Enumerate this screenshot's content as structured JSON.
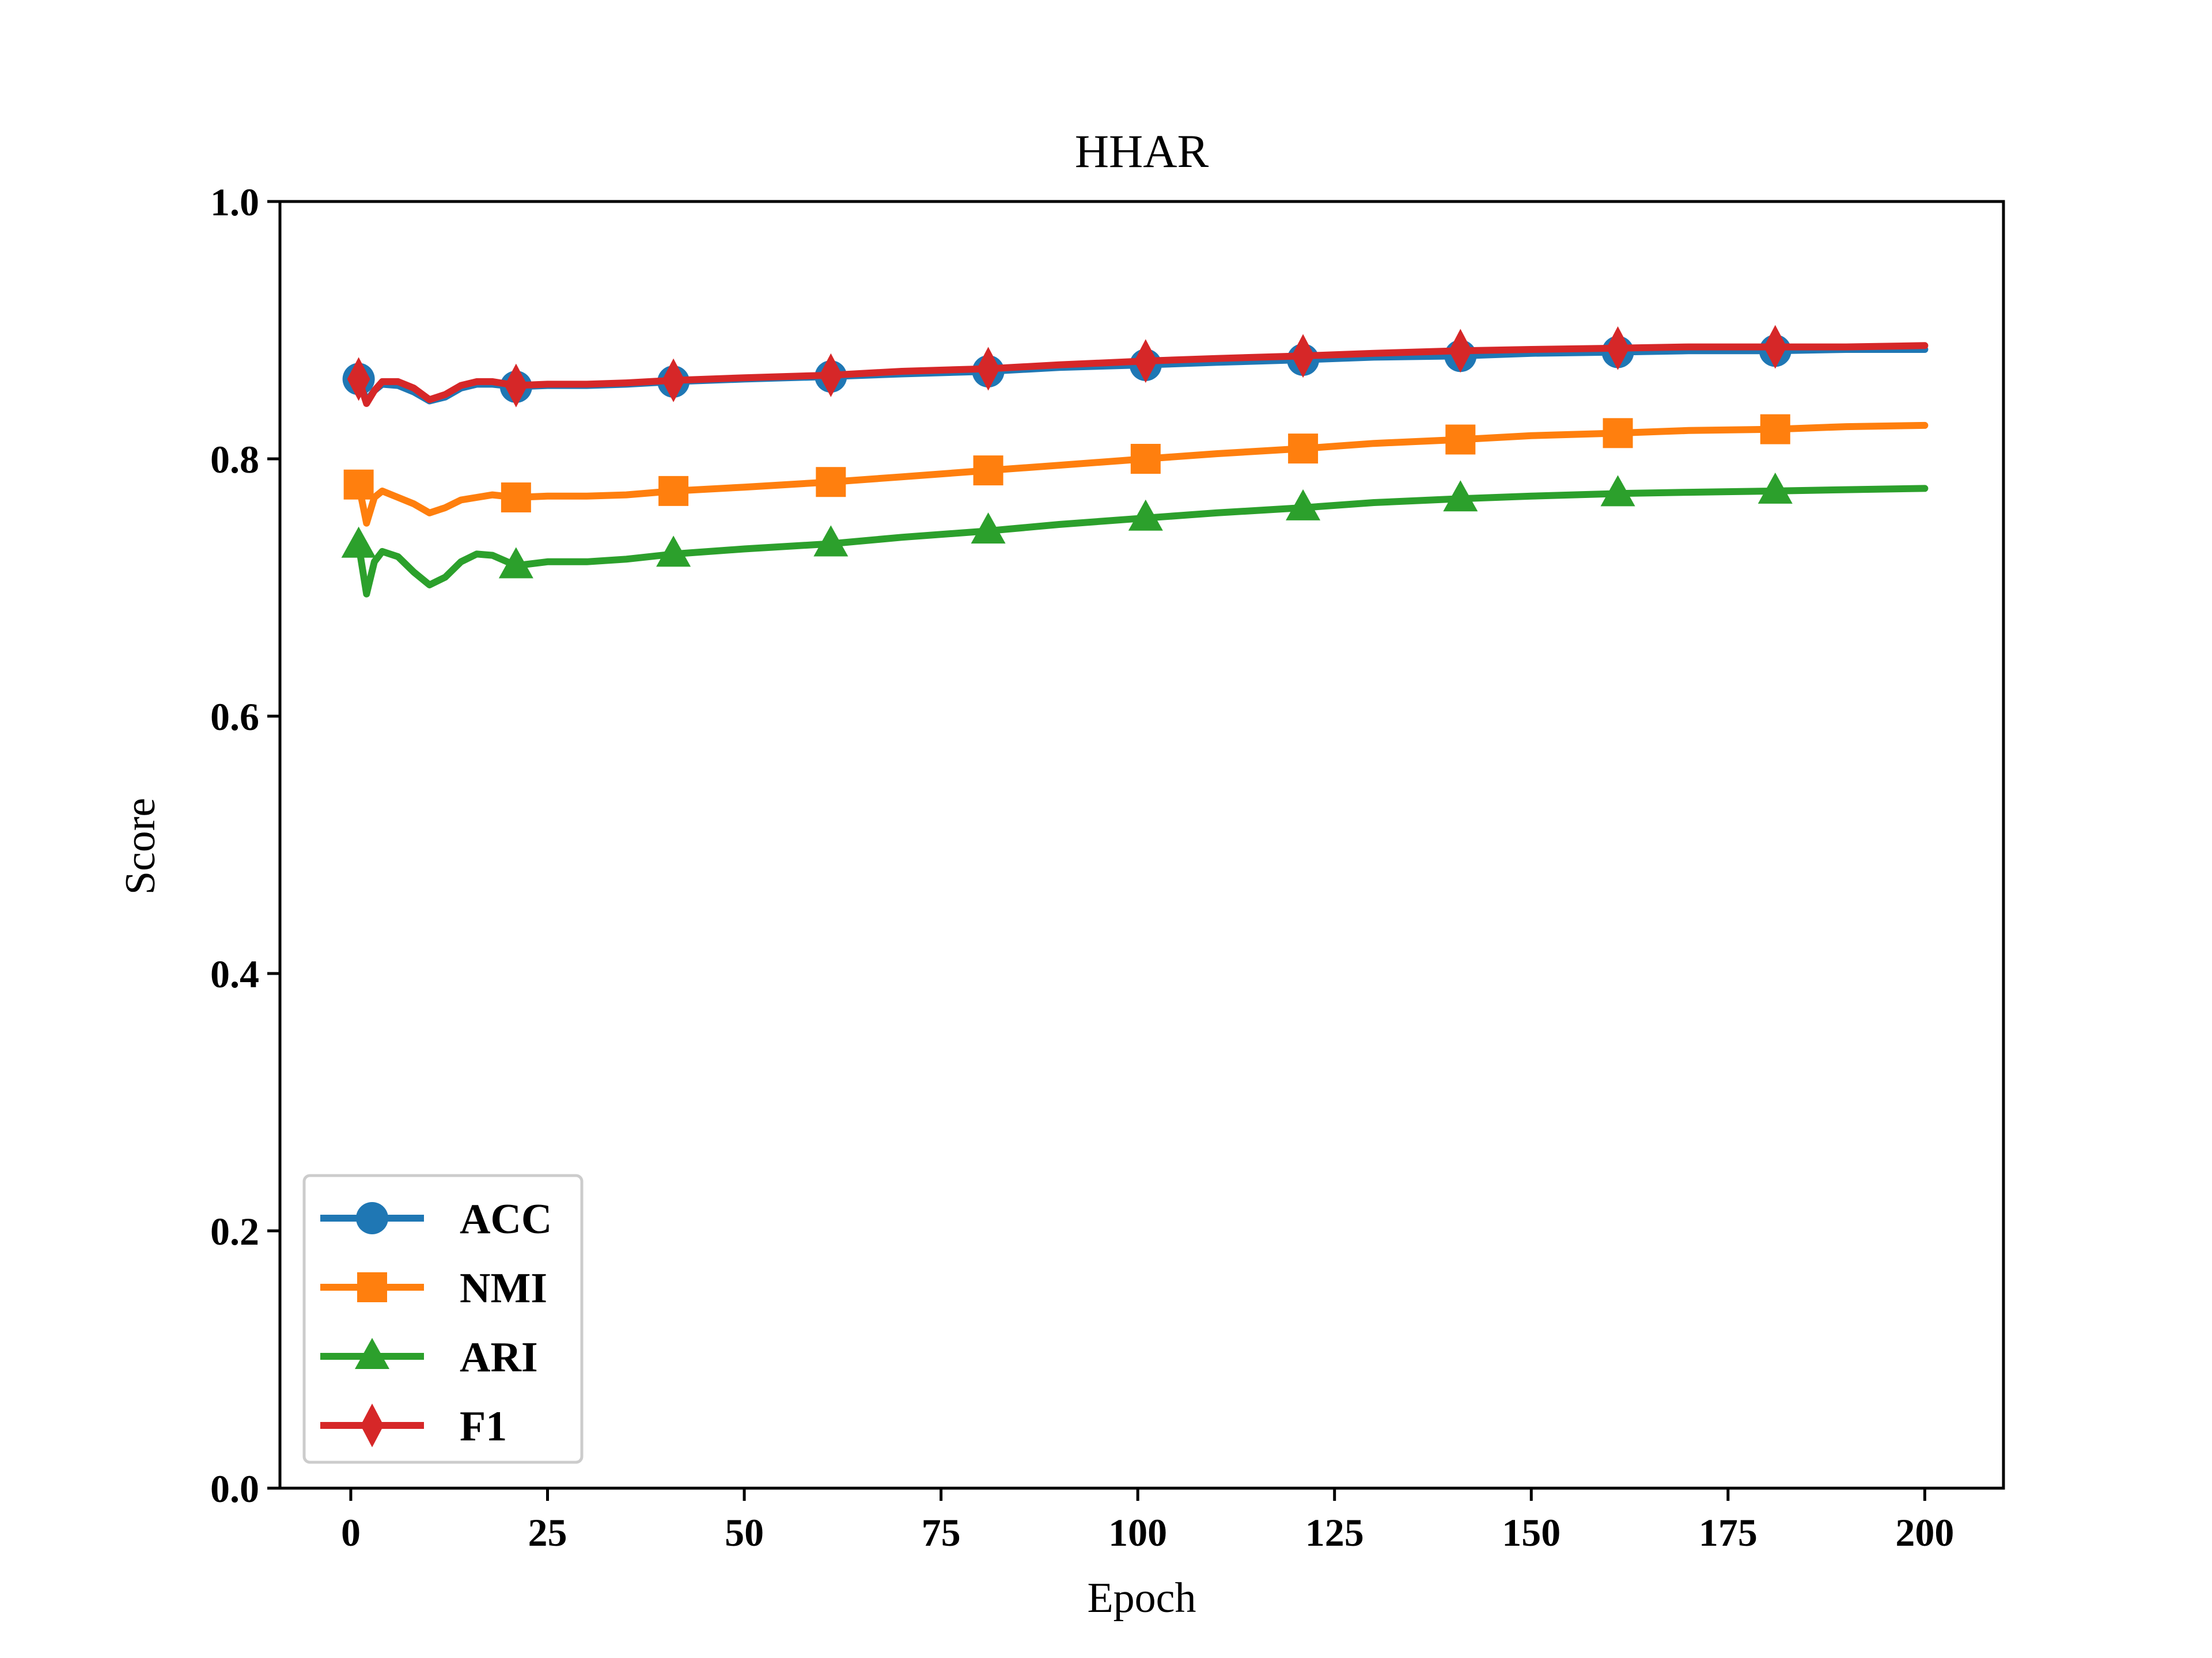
{
  "chart_data": {
    "type": "line",
    "title": "HHAR",
    "xlabel": "Epoch",
    "ylabel": "Score",
    "xlim": [
      -9,
      210
    ],
    "ylim": [
      0.0,
      1.0
    ],
    "xticks": [
      0,
      25,
      50,
      75,
      100,
      125,
      150,
      175,
      200
    ],
    "xtick_labels": [
      "0",
      "25",
      "50",
      "75",
      "100",
      "125",
      "150",
      "175",
      "200"
    ],
    "yticks": [
      0.0,
      0.2,
      0.4,
      0.6,
      0.8,
      1.0
    ],
    "ytick_labels": [
      "0.0",
      "0.2",
      "0.4",
      "0.6",
      "0.8",
      "1.0"
    ],
    "grid": false,
    "legend_position": "lower-left",
    "marker_x": [
      1,
      21,
      41,
      61,
      81,
      101,
      121,
      141,
      161,
      181
    ],
    "series": [
      {
        "name": "ACC",
        "color": "#1f77b4",
        "marker": "circle",
        "x": [
          1,
          2,
          3,
          4,
          6,
          8,
          10,
          12,
          14,
          16,
          18,
          21,
          25,
          30,
          35,
          41,
          50,
          61,
          70,
          81,
          90,
          101,
          110,
          121,
          130,
          141,
          150,
          161,
          170,
          181,
          190,
          200
        ],
        "values": [
          0.862,
          0.845,
          0.853,
          0.858,
          0.857,
          0.852,
          0.845,
          0.848,
          0.855,
          0.858,
          0.858,
          0.856,
          0.857,
          0.857,
          0.858,
          0.86,
          0.862,
          0.864,
          0.866,
          0.868,
          0.871,
          0.873,
          0.875,
          0.877,
          0.879,
          0.88,
          0.882,
          0.883,
          0.884,
          0.884,
          0.885,
          0.885
        ]
      },
      {
        "name": "NMI",
        "color": "#ff7f0e",
        "marker": "square",
        "x": [
          1,
          2,
          3,
          4,
          6,
          8,
          10,
          12,
          14,
          16,
          18,
          21,
          25,
          30,
          35,
          41,
          50,
          61,
          70,
          81,
          90,
          101,
          110,
          121,
          130,
          141,
          150,
          161,
          170,
          181,
          190,
          200
        ],
        "values": [
          0.78,
          0.75,
          0.77,
          0.775,
          0.77,
          0.765,
          0.758,
          0.762,
          0.768,
          0.77,
          0.772,
          0.77,
          0.771,
          0.771,
          0.772,
          0.775,
          0.778,
          0.782,
          0.786,
          0.791,
          0.795,
          0.8,
          0.804,
          0.808,
          0.812,
          0.815,
          0.818,
          0.82,
          0.822,
          0.823,
          0.825,
          0.826
        ]
      },
      {
        "name": "ARI",
        "color": "#2ca02c",
        "marker": "triangle",
        "x": [
          1,
          2,
          3,
          4,
          6,
          8,
          10,
          12,
          14,
          16,
          18,
          21,
          25,
          30,
          35,
          41,
          50,
          61,
          70,
          81,
          90,
          101,
          110,
          121,
          130,
          141,
          150,
          161,
          170,
          181,
          190,
          200
        ],
        "values": [
          0.733,
          0.695,
          0.72,
          0.728,
          0.724,
          0.712,
          0.702,
          0.708,
          0.72,
          0.726,
          0.725,
          0.717,
          0.72,
          0.72,
          0.722,
          0.726,
          0.73,
          0.734,
          0.739,
          0.744,
          0.749,
          0.754,
          0.758,
          0.762,
          0.766,
          0.769,
          0.771,
          0.773,
          0.774,
          0.775,
          0.776,
          0.777
        ]
      },
      {
        "name": "F1",
        "color": "#d62728",
        "marker": "diamond",
        "x": [
          1,
          2,
          3,
          4,
          6,
          8,
          10,
          12,
          14,
          16,
          18,
          21,
          25,
          30,
          35,
          41,
          50,
          61,
          70,
          81,
          90,
          101,
          110,
          121,
          130,
          141,
          150,
          161,
          170,
          181,
          190,
          200
        ],
        "values": [
          0.862,
          0.843,
          0.853,
          0.86,
          0.86,
          0.855,
          0.846,
          0.85,
          0.857,
          0.86,
          0.86,
          0.857,
          0.858,
          0.858,
          0.859,
          0.861,
          0.863,
          0.865,
          0.868,
          0.87,
          0.873,
          0.876,
          0.878,
          0.88,
          0.882,
          0.884,
          0.885,
          0.886,
          0.887,
          0.887,
          0.887,
          0.888
        ]
      }
    ]
  }
}
